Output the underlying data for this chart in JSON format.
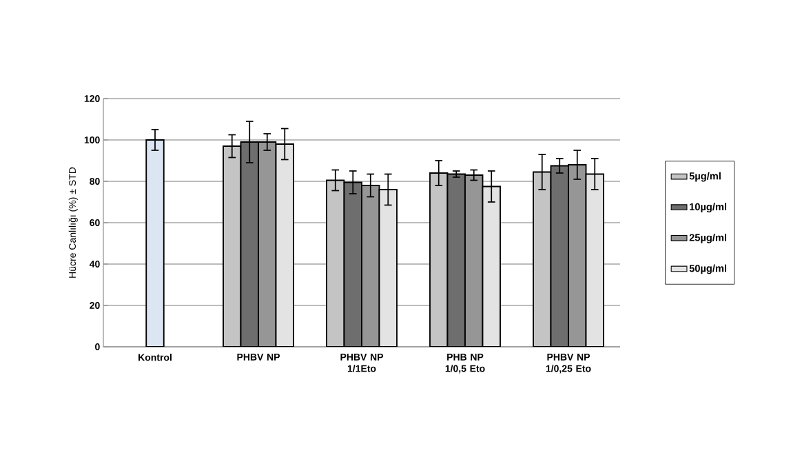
{
  "chart_data": {
    "type": "bar",
    "ylabel": "Hücre Canlılığı (%) ± STD",
    "categories": [
      "Kontrol",
      "PHBV NP",
      "PHBV NP 1/1Eto",
      "PHB NP 1/0,5 Eto",
      "PHBV NP 1/0,25 Eto"
    ],
    "series": [
      {
        "name": "5µg/ml",
        "color": "#c4c4c4",
        "values": [
          null,
          97,
          80.5,
          84,
          84.5
        ],
        "errors": [
          null,
          5.5,
          5,
          6,
          8.5
        ]
      },
      {
        "name": "10µg/ml",
        "color": "#6e6e6e",
        "values": [
          null,
          99,
          79.5,
          83.5,
          87.5
        ],
        "errors": [
          null,
          10,
          5.5,
          1.5,
          3.5
        ]
      },
      {
        "name": "25µg/ml",
        "color": "#969696",
        "values": [
          null,
          99,
          78,
          83,
          88
        ],
        "errors": [
          null,
          4,
          5.5,
          2.5,
          7
        ]
      },
      {
        "name": "50µg/ml",
        "color": "#e3e3e3",
        "values": [
          null,
          98,
          76,
          77.5,
          83.5
        ],
        "errors": [
          null,
          7.5,
          7.5,
          7.5,
          7.5
        ]
      },
      {
        "name": null,
        "color": "#dce6f2",
        "values": [
          100,
          null,
          null,
          null,
          null
        ],
        "errors": [
          5,
          null,
          null,
          null,
          null
        ]
      }
    ],
    "ylim": [
      0,
      120
    ],
    "yticks": [
      0,
      20,
      40,
      60,
      80,
      100,
      120
    ],
    "grid": "y",
    "legend": "right"
  }
}
